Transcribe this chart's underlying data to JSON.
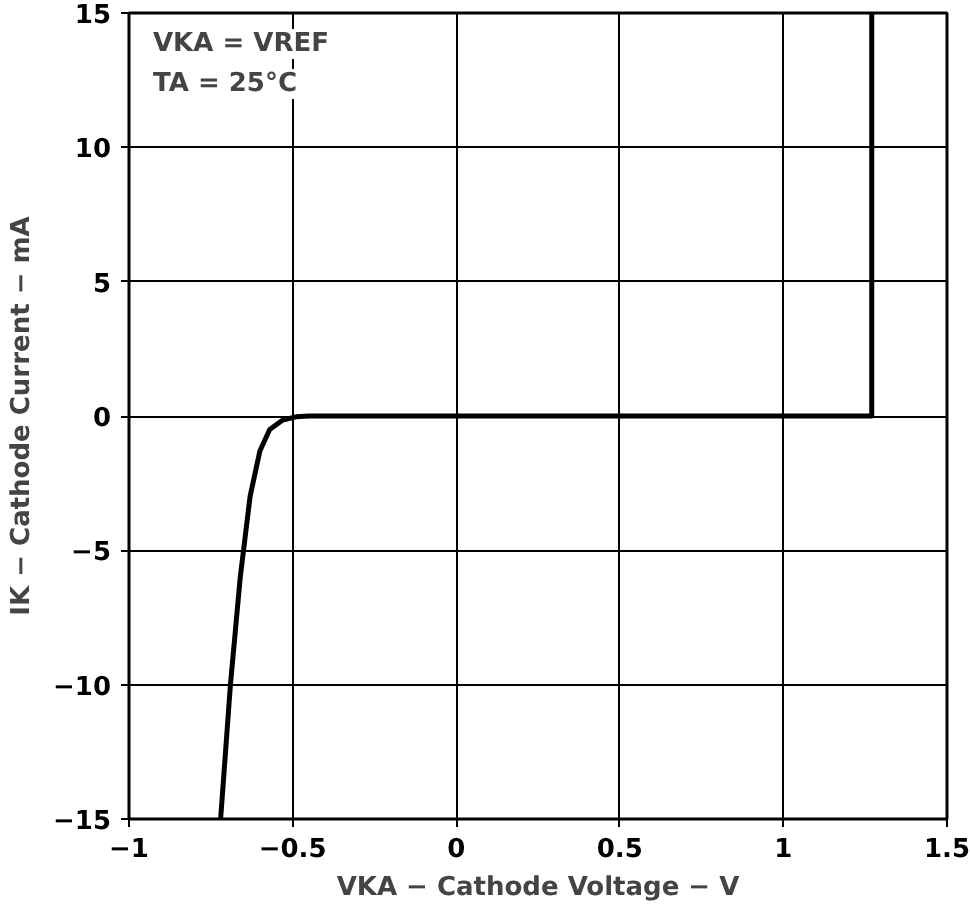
{
  "chart_data": {
    "type": "line",
    "xlabel": "VKA − Cathode Voltage − V",
    "ylabel": "IK − Cathode Current − mA",
    "annotations": [
      "VKA = VREF",
      "TA = 25°C"
    ],
    "series": [
      {
        "color": "#000000",
        "x": [
          -0.72,
          -0.69,
          -0.66,
          -0.63,
          -0.6,
          -0.57,
          -0.53,
          -0.49,
          -0.45,
          1.27,
          1.27
        ],
        "values": [
          -15,
          -10,
          -6,
          -3,
          -1.3,
          -0.5,
          -0.15,
          -0.03,
          0,
          0,
          15
        ]
      }
    ],
    "xlim": [
      -1,
      1.5
    ],
    "ylim": [
      -15,
      15
    ],
    "xticks": [
      {
        "value": -1,
        "label": "−1"
      },
      {
        "value": -0.5,
        "label": "−0.5"
      },
      0,
      0.5,
      1,
      1.5
    ],
    "yticks": [
      {
        "value": -15,
        "label": "−15"
      },
      {
        "value": -10,
        "label": "−10"
      },
      {
        "value": -5,
        "label": "−5"
      },
      0,
      5,
      10,
      15
    ],
    "grid": true,
    "line_style": "solid"
  }
}
